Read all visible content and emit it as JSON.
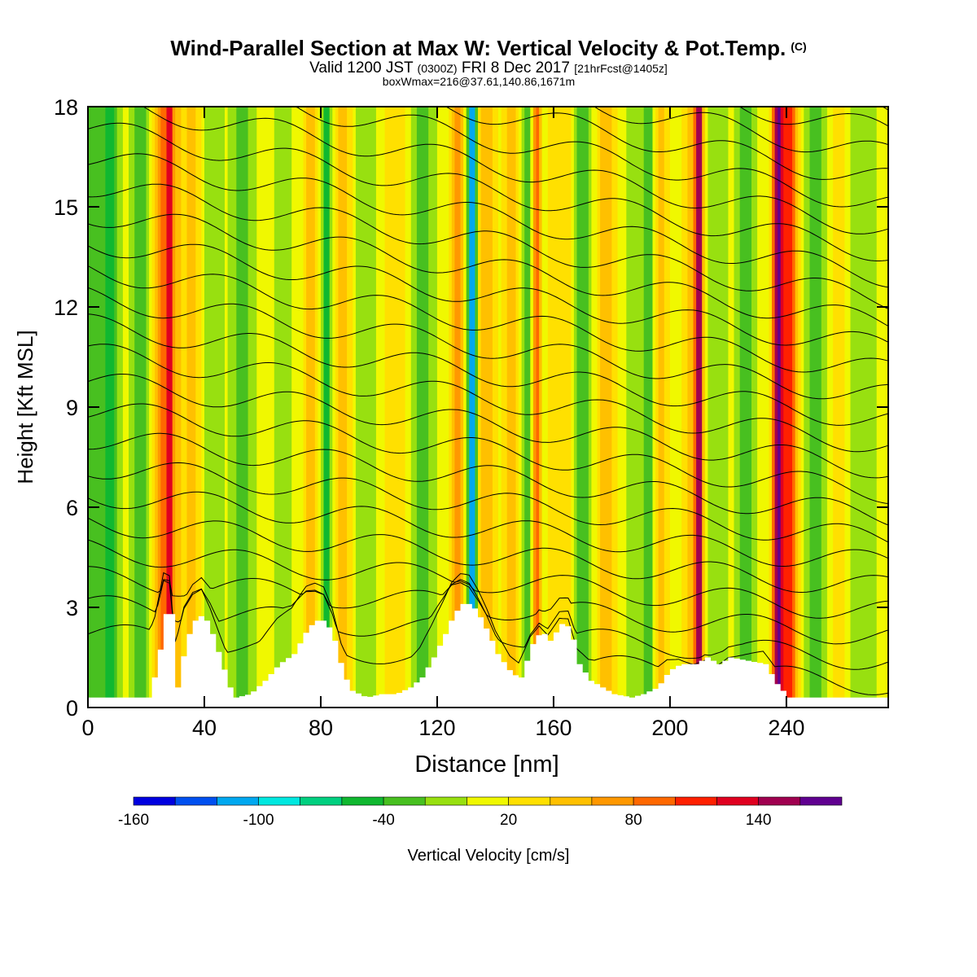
{
  "titles": {
    "main": "Wind-Parallel Section at Max W: Vertical Velocity & Pot.Temp.",
    "main_mark": "(C)",
    "valid_prefix": "Valid 1200 JST",
    "valid_z": "(0300Z)",
    "valid_date": "FRI 8 Dec 2017",
    "valid_fcst": "[21hrFcst@1405z]",
    "box_line": "boxWmax=216@37.61,140.86,1671m"
  },
  "chart_data": {
    "type": "heatmap",
    "title": "Wind-Parallel Section at Max W: Vertical Velocity & Pot.Temp.",
    "xlabel": "Distance [nm]",
    "ylabel": "Height [Kft MSL]",
    "xlim": [
      0,
      275
    ],
    "ylim": [
      0,
      18
    ],
    "x_ticks": [
      0,
      40,
      80,
      120,
      160,
      200,
      240
    ],
    "y_ticks": [
      0,
      3,
      6,
      9,
      12,
      15,
      18
    ],
    "colorbar": {
      "label": "Vertical Velocity [cm/s]",
      "tick_labels": [
        -160,
        -100,
        -40,
        20,
        80,
        140
      ],
      "bins": [
        -170,
        -150,
        -130,
        -110,
        -90,
        -70,
        -50,
        -30,
        -10,
        10,
        30,
        50,
        70,
        90,
        110,
        130,
        150,
        170
      ],
      "colors": [
        "#0000e0",
        "#0050f0",
        "#00a8f0",
        "#00e8e0",
        "#00d080",
        "#10b830",
        "#48c020",
        "#98e010",
        "#f0f800",
        "#ffe000",
        "#ffc000",
        "#ff9800",
        "#ff6800",
        "#ff2000",
        "#e00020",
        "#a00050",
        "#600090"
      ]
    },
    "background_velocity": 0,
    "velocity_features": [
      {
        "x": 2,
        "width": 6,
        "value": -40
      },
      {
        "x": 8,
        "width": 3,
        "value": -40
      },
      {
        "x": 18,
        "width": 3,
        "value": -40
      },
      {
        "x": 25,
        "width": 2.5,
        "value": 70
      },
      {
        "x": 28,
        "width": 1.5,
        "value": 100
      },
      {
        "x": 31,
        "width": 3,
        "value": 30
      },
      {
        "x": 36,
        "width": 2.5,
        "value": 40
      },
      {
        "x": 43,
        "width": 3,
        "value": -30
      },
      {
        "x": 53,
        "width": 4,
        "value": -40
      },
      {
        "x": 67,
        "width": 3,
        "value": -30
      },
      {
        "x": 77,
        "width": 3,
        "value": 40
      },
      {
        "x": 82,
        "width": 2,
        "value": -60
      },
      {
        "x": 88,
        "width": 3,
        "value": 50
      },
      {
        "x": 95,
        "width": 5,
        "value": -30
      },
      {
        "x": 105,
        "width": 4,
        "value": 30
      },
      {
        "x": 115,
        "width": 4,
        "value": -40
      },
      {
        "x": 127,
        "width": 2,
        "value": 60
      },
      {
        "x": 132,
        "width": 1.5,
        "value": -140
      },
      {
        "x": 137,
        "width": 3,
        "value": 40
      },
      {
        "x": 146,
        "width": 3,
        "value": 40
      },
      {
        "x": 151,
        "width": 3,
        "value": -40
      },
      {
        "x": 154,
        "width": 1.5,
        "value": 100
      },
      {
        "x": 162,
        "width": 4,
        "value": 30
      },
      {
        "x": 170,
        "width": 2.5,
        "value": -50
      },
      {
        "x": 178,
        "width": 3,
        "value": 40
      },
      {
        "x": 188,
        "width": 2.5,
        "value": -30
      },
      {
        "x": 193,
        "width": 2,
        "value": -60
      },
      {
        "x": 196,
        "width": 3,
        "value": 40
      },
      {
        "x": 208,
        "width": 3,
        "value": 40
      },
      {
        "x": 210,
        "width": 1.3,
        "value": 140
      },
      {
        "x": 216,
        "width": 4,
        "value": -30
      },
      {
        "x": 226,
        "width": 3,
        "value": -40
      },
      {
        "x": 237,
        "width": 1.8,
        "value": 150
      },
      {
        "x": 241,
        "width": 3,
        "value": 100
      },
      {
        "x": 250,
        "width": 4,
        "value": -40
      },
      {
        "x": 258,
        "width": 3,
        "value": 30
      },
      {
        "x": 266,
        "width": 5,
        "value": -30
      }
    ],
    "terrain": [
      [
        0,
        0.3
      ],
      [
        20,
        0.3
      ],
      [
        23,
        1.2
      ],
      [
        26,
        2.8
      ],
      [
        28,
        2.8
      ],
      [
        30,
        0.6
      ],
      [
        33,
        2.0
      ],
      [
        36,
        2.6
      ],
      [
        39,
        2.8
      ],
      [
        42,
        2.2
      ],
      [
        45,
        1.4
      ],
      [
        48,
        0.6
      ],
      [
        50,
        0.3
      ],
      [
        55,
        0.4
      ],
      [
        60,
        0.8
      ],
      [
        65,
        1.3
      ],
      [
        70,
        1.6
      ],
      [
        75,
        2.4
      ],
      [
        78,
        2.6
      ],
      [
        81,
        2.6
      ],
      [
        84,
        2.0
      ],
      [
        87,
        1.0
      ],
      [
        90,
        0.5
      ],
      [
        95,
        0.3
      ],
      [
        100,
        0.4
      ],
      [
        105,
        0.4
      ],
      [
        110,
        0.6
      ],
      [
        114,
        0.9
      ],
      [
        118,
        1.5
      ],
      [
        122,
        2.2
      ],
      [
        125,
        2.8
      ],
      [
        128,
        3.1
      ],
      [
        131,
        3.1
      ],
      [
        134,
        2.7
      ],
      [
        137,
        2.2
      ],
      [
        140,
        1.6
      ],
      [
        145,
        1.0
      ],
      [
        148,
        0.9
      ],
      [
        152,
        1.9
      ],
      [
        155,
        2.3
      ],
      [
        158,
        2.0
      ],
      [
        162,
        2.5
      ],
      [
        165,
        2.4
      ],
      [
        168,
        1.3
      ],
      [
        172,
        0.8
      ],
      [
        176,
        0.6
      ],
      [
        180,
        0.4
      ],
      [
        186,
        0.3
      ],
      [
        190,
        0.4
      ],
      [
        195,
        0.6
      ],
      [
        199,
        1.1
      ],
      [
        203,
        1.3
      ],
      [
        208,
        1.3
      ],
      [
        212,
        1.5
      ],
      [
        216,
        1.3
      ],
      [
        220,
        1.5
      ],
      [
        226,
        1.4
      ],
      [
        232,
        1.3
      ],
      [
        236,
        0.7
      ],
      [
        240,
        0.3
      ],
      [
        275,
        0.3
      ]
    ],
    "theta_contours": {
      "levels": 25,
      "lowest_height_kft": 0.7,
      "spacing_kft": 0.72
    }
  }
}
